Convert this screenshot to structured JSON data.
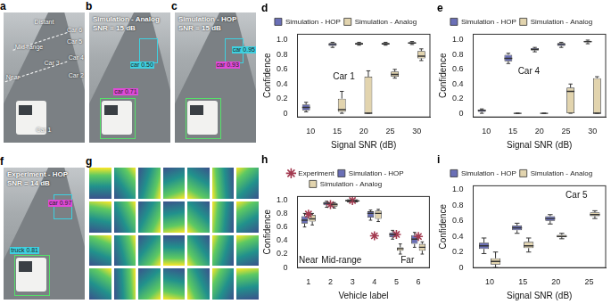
{
  "chart_data": [
    {
      "type": "box",
      "title": "d",
      "annotation": "Car 1",
      "x_label": "Signal SNR (dB)",
      "y_label": "Confidence",
      "categories": [
        10,
        15,
        20,
        25,
        30
      ],
      "ylim": [
        -0.05,
        1.08
      ],
      "yticks": [
        0,
        0.2,
        0.4,
        0.6,
        0.8,
        {
          "value": 1,
          "label": "1.0"
        }
      ],
      "grid": false,
      "legend": "top",
      "series": [
        {
          "name": "Simulation - HOP",
          "color": "#6a6fb6",
          "values": [
            {
              "min": 0.02,
              "q1": 0.04,
              "median": 0.08,
              "q3": 0.12,
              "max": 0.15
            },
            {
              "min": 0.9,
              "q1": 0.92,
              "median": 0.94,
              "q3": 0.96,
              "max": 0.97
            },
            {
              "min": 0.93,
              "q1": 0.94,
              "median": 0.95,
              "q3": 0.96,
              "max": 0.97
            },
            {
              "min": 0.93,
              "q1": 0.94,
              "median": 0.95,
              "q3": 0.96,
              "max": 0.97
            },
            {
              "min": 0.94,
              "q1": 0.95,
              "median": 0.96,
              "q3": 0.97,
              "max": 0.98
            }
          ]
        },
        {
          "name": "Simulation - Analog",
          "color": "#e2d4ae",
          "values": [
            null,
            {
              "min": 0.0,
              "q1": 0.02,
              "median": 0.05,
              "q3": 0.2,
              "max": 0.3
            },
            {
              "min": 0.0,
              "q1": 0.0,
              "median": 0.0,
              "q3": 0.5,
              "max": 0.58
            },
            {
              "min": 0.48,
              "q1": 0.5,
              "median": 0.53,
              "q3": 0.57,
              "max": 0.6
            },
            {
              "min": 0.72,
              "q1": 0.75,
              "median": 0.78,
              "q3": 0.85,
              "max": 0.88
            }
          ]
        }
      ]
    },
    {
      "type": "box",
      "title": "e",
      "annotation": "Car 4",
      "x_label": "Signal SNR (dB)",
      "y_label": "Confidence",
      "categories": [
        10,
        15,
        20,
        25,
        30
      ],
      "ylim": [
        -0.05,
        1.08
      ],
      "yticks": [
        0,
        0.2,
        0.4,
        0.6,
        0.8,
        {
          "value": 1,
          "label": "1.0"
        }
      ],
      "grid": false,
      "legend": "top",
      "series": [
        {
          "name": "Simulation - HOP",
          "color": "#6a6fb6",
          "values": [
            {
              "min": 0.0,
              "q1": 0.02,
              "median": 0.04,
              "q3": 0.05,
              "max": 0.06
            },
            {
              "min": 0.68,
              "q1": 0.71,
              "median": 0.75,
              "q3": 0.8,
              "max": 0.82
            },
            {
              "min": 0.84,
              "q1": 0.86,
              "median": 0.87,
              "q3": 0.89,
              "max": 0.9
            },
            {
              "min": 0.9,
              "q1": 0.92,
              "median": 0.94,
              "q3": 0.96,
              "max": 0.97
            },
            {
              "min": 0.95,
              "q1": 0.97,
              "median": 0.98,
              "q3": 0.99,
              "max": 1.0
            }
          ]
        },
        {
          "name": "Simulation - Analog",
          "color": "#e2d4ae",
          "values": [
            null,
            {
              "min": 0.0,
              "q1": 0.0,
              "median": 0.0,
              "q3": 0.0,
              "max": 0.0
            },
            {
              "min": 0.0,
              "q1": 0.0,
              "median": 0.0,
              "q3": 0.0,
              "max": 0.0
            },
            {
              "min": 0.0,
              "q1": 0.0,
              "median": 0.3,
              "q3": 0.35,
              "max": 0.4
            },
            {
              "min": 0.0,
              "q1": 0.0,
              "median": 0.0,
              "q3": 0.48,
              "max": 0.5
            }
          ]
        }
      ]
    },
    {
      "type": "box",
      "title": "h",
      "annotations": [
        {
          "text": "Near",
          "categories": [
            1
          ]
        },
        {
          "text": "Mid-range",
          "categories": [
            2,
            3
          ]
        },
        {
          "text": "Far",
          "categories": [
            5,
            6
          ]
        }
      ],
      "x_label": "Vehicle label",
      "y_label": "Confidence",
      "categories": [
        1,
        2,
        3,
        4,
        5,
        6
      ],
      "ylim": [
        0,
        1.05
      ],
      "yticks": [
        0,
        0.2,
        0.4,
        0.6,
        0.8,
        {
          "value": 1,
          "label": "1.0"
        }
      ],
      "grid": false,
      "legend": "top",
      "series": [
        {
          "name": "Simulation - HOP",
          "color": "#6a6fb6",
          "values": [
            {
              "min": 0.6,
              "q1": 0.65,
              "median": 0.7,
              "q3": 0.76,
              "max": 0.8
            },
            {
              "min": 0.89,
              "q1": 0.92,
              "median": 0.95,
              "q3": 0.97,
              "max": 0.98
            },
            {
              "min": 0.97,
              "q1": 0.98,
              "median": 0.99,
              "q3": 0.995,
              "max": 1.0
            },
            {
              "min": 0.7,
              "q1": 0.74,
              "median": 0.8,
              "q3": 0.83,
              "max": 0.85
            },
            {
              "min": 0.42,
              "q1": 0.45,
              "median": 0.49,
              "q3": 0.52,
              "max": 0.55
            },
            {
              "min": 0.3,
              "q1": 0.35,
              "median": 0.42,
              "q3": 0.48,
              "max": 0.52
            }
          ]
        },
        {
          "name": "Simulation - Analog",
          "color": "#e2d4ae",
          "values": [
            {
              "min": 0.63,
              "q1": 0.68,
              "median": 0.72,
              "q3": 0.78,
              "max": 0.8
            },
            {
              "min": 0.88,
              "q1": 0.9,
              "median": 0.93,
              "q3": 0.95,
              "max": 0.96
            },
            {
              "min": 0.97,
              "q1": 0.98,
              "median": 0.985,
              "q3": 0.99,
              "max": 1.0
            },
            {
              "min": 0.68,
              "q1": 0.72,
              "median": 0.8,
              "q3": 0.84,
              "max": 0.86
            },
            {
              "min": 0.2,
              "q1": 0.25,
              "median": 0.28,
              "q3": 0.3,
              "max": 0.35
            },
            {
              "min": 0.2,
              "q1": 0.25,
              "median": 0.3,
              "q3": 0.35,
              "max": 0.38
            }
          ]
        },
        {
          "name": "Experiment",
          "type": "scatter",
          "marker": "star",
          "color": "#a33a50",
          "values": [
            0.79,
            0.93,
            0.99,
            0.47,
            0.49,
            0.46
          ]
        }
      ]
    },
    {
      "type": "box",
      "title": "i",
      "annotation": "Car 5",
      "x_label": "Signal SNR (dB)",
      "y_label": "Confidence",
      "categories": [
        10,
        15,
        20,
        25
      ],
      "ylim": [
        0,
        1.05
      ],
      "yticks": [
        0,
        0.2,
        0.4,
        0.6,
        0.8,
        {
          "value": 1,
          "label": "1.0"
        }
      ],
      "grid": false,
      "legend": "top",
      "series": [
        {
          "name": "Simulation - HOP",
          "color": "#6a6fb6",
          "values": [
            {
              "min": 0.18,
              "q1": 0.24,
              "median": 0.28,
              "q3": 0.32,
              "max": 0.38
            },
            {
              "min": 0.44,
              "q1": 0.48,
              "median": 0.51,
              "q3": 0.54,
              "max": 0.57
            },
            {
              "min": 0.56,
              "q1": 0.6,
              "median": 0.63,
              "q3": 0.66,
              "max": 0.68
            },
            null
          ]
        },
        {
          "name": "Simulation - Analog",
          "color": "#e2d4ae",
          "values": [
            {
              "min": 0.0,
              "q1": 0.04,
              "median": 0.08,
              "q3": 0.12,
              "max": 0.2
            },
            {
              "min": 0.2,
              "q1": 0.25,
              "median": 0.28,
              "q3": 0.33,
              "max": 0.38
            },
            {
              "min": 0.37,
              "q1": 0.39,
              "median": 0.4,
              "q3": 0.42,
              "max": 0.44
            },
            {
              "min": 0.63,
              "q1": 0.66,
              "median": 0.68,
              "q3": 0.71,
              "max": 0.73
            }
          ]
        }
      ]
    }
  ],
  "image_panels": [
    {
      "label": "a",
      "texts": [
        "Distant",
        "Mid-range",
        "Near",
        "Car 1",
        "Car 2",
        "Car 3",
        "Car 4",
        "Car 5",
        "Car 6"
      ]
    },
    {
      "label": "b",
      "title": "Simulation - Analog",
      "subtitle": "SNR = 15 dB",
      "texts": [
        "car 0.71",
        "car 0.50"
      ]
    },
    {
      "label": "c",
      "title": "Simulation - HOP",
      "subtitle": "SNR = 15 dB",
      "texts": [
        "car 0.93",
        "car 0.95"
      ]
    },
    {
      "label": "f",
      "title": "Experiment - HOP",
      "subtitle": "SNR = 14 dB",
      "texts": [
        "car 0.97",
        "truck 0.81"
      ]
    },
    {
      "label": "g",
      "texts": []
    }
  ]
}
